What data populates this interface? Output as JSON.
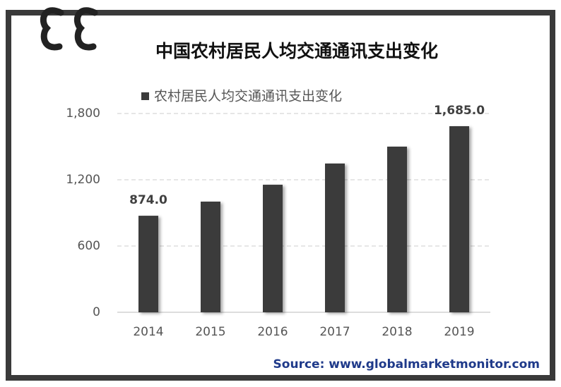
{
  "chart_data": {
    "type": "bar",
    "title": "中国农村居民人均交通通讯支出变化",
    "categories": [
      "2014",
      "2015",
      "2016",
      "2017",
      "2018",
      "2019"
    ],
    "series": [
      {
        "name": "农村居民人均交通通讯支出变化",
        "color": "#3b3b3b",
        "values": [
          874,
          1002,
          1155,
          1347,
          1500,
          1685
        ],
        "value_labels": [
          "874.0",
          null,
          null,
          null,
          null,
          "1,685.0"
        ]
      }
    ],
    "ylim": [
      0,
      1800
    ],
    "yticks": [
      0,
      600,
      {
        "value": 1200,
        "label": "1,200"
      },
      {
        "value": 1800,
        "label": "1,800"
      }
    ],
    "grid": true,
    "legend": "top",
    "source": "Source: www.globalmarketmonitor.com"
  }
}
